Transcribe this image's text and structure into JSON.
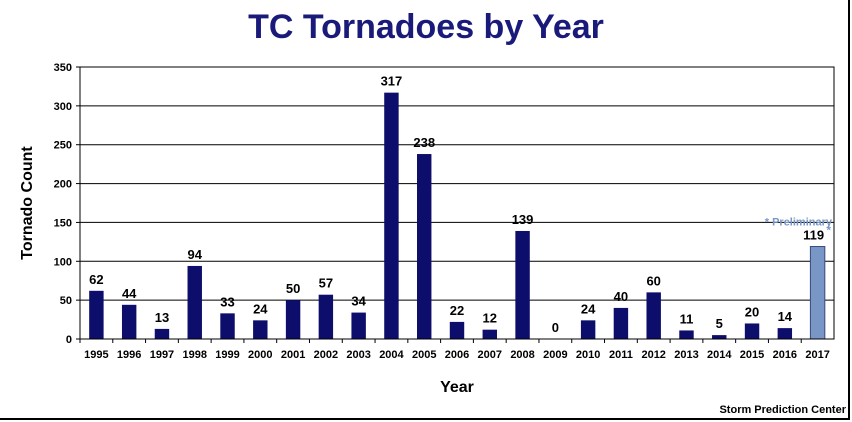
{
  "chart_data": {
    "type": "bar",
    "title": "TC Tornadoes by Year",
    "xlabel": "Year",
    "ylabel": "Tornado Count",
    "ylim": [
      0,
      350
    ],
    "yticks": [
      0,
      50,
      100,
      150,
      200,
      250,
      300,
      350
    ],
    "grid": true,
    "categories": [
      "1995",
      "1996",
      "1997",
      "1998",
      "1999",
      "2000",
      "2001",
      "2002",
      "2003",
      "2004",
      "2005",
      "2006",
      "2007",
      "2008",
      "2009",
      "2010",
      "2011",
      "2012",
      "2013",
      "2014",
      "2015",
      "2016",
      "2017"
    ],
    "values": [
      62,
      44,
      13,
      94,
      33,
      24,
      50,
      57,
      34,
      317,
      238,
      22,
      12,
      139,
      0,
      24,
      40,
      60,
      11,
      5,
      20,
      14,
      119
    ],
    "preliminary_index": 22,
    "annotation": "* Preliminary",
    "preliminary_marker": "*",
    "colors": {
      "bar": "#0d0d6b",
      "preliminary_bar": "#7896c6",
      "note": "#7896c6",
      "title": "#1a1a7a"
    }
  },
  "credit": "Storm Prediction Center"
}
